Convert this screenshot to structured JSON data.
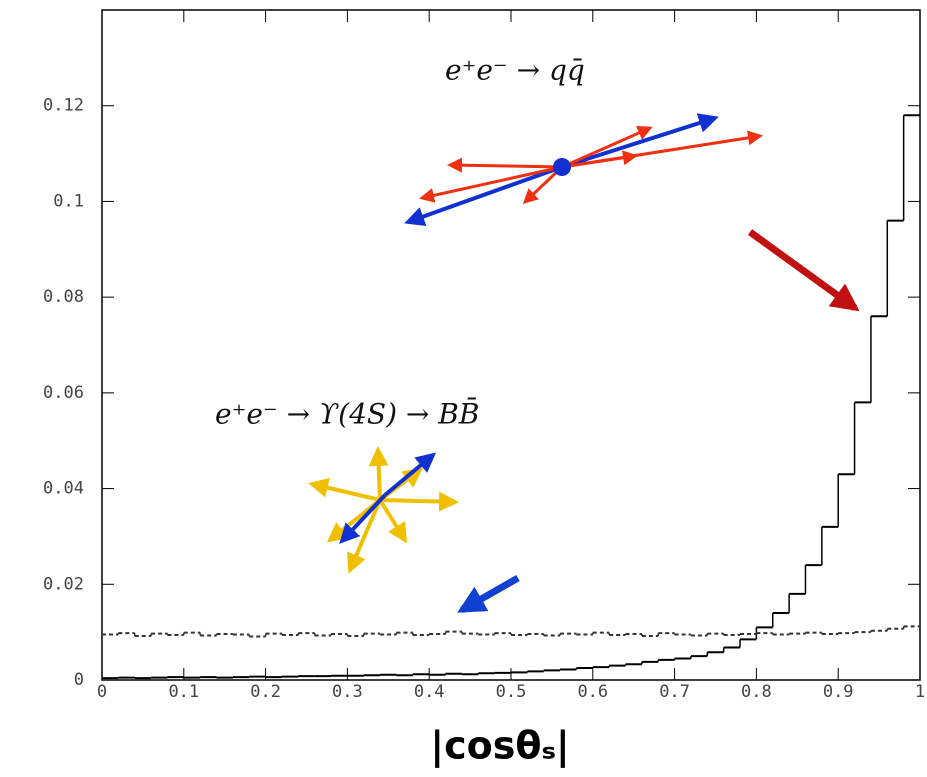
{
  "chart_data": {
    "type": "histogram",
    "x_label": "|cosθₛ|",
    "annotations": [
      "e⁺e⁻ → qq̄",
      "e⁺e⁻ → ϒ(4S) → BB̄"
    ],
    "bins": [
      0,
      0.02,
      0.04,
      0.06,
      0.08,
      0.1,
      0.12,
      0.14,
      0.16,
      0.18,
      0.2,
      0.22,
      0.24,
      0.26,
      0.28,
      0.3,
      0.32,
      0.34,
      0.36,
      0.38,
      0.4,
      0.42,
      0.44,
      0.46,
      0.48,
      0.5,
      0.52,
      0.54,
      0.56,
      0.58,
      0.6,
      0.62,
      0.64,
      0.66,
      0.68,
      0.7,
      0.72,
      0.74,
      0.76,
      0.78,
      0.8,
      0.82,
      0.84,
      0.86,
      0.88,
      0.9,
      0.92,
      0.94,
      0.96,
      0.98,
      1
    ],
    "series": [
      {
        "color": "#000000",
        "dashed": false,
        "values": [
          0.0004,
          0.0005,
          0.0004,
          0.0005,
          0.0006,
          0.0005,
          0.0006,
          0.0005,
          0.0006,
          0.0007,
          0.0006,
          0.0007,
          0.0008,
          0.0008,
          0.0009,
          0.0009,
          0.001,
          0.0011,
          0.001,
          0.0012,
          0.0011,
          0.0013,
          0.0012,
          0.0014,
          0.0015,
          0.0016,
          0.0018,
          0.002,
          0.0022,
          0.0025,
          0.0027,
          0.003,
          0.0033,
          0.0038,
          0.0042,
          0.0045,
          0.005,
          0.0058,
          0.0068,
          0.0085,
          0.011,
          0.014,
          0.018,
          0.024,
          0.032,
          0.043,
          0.058,
          0.076,
          0.096,
          0.118
        ]
      },
      {
        "color": "#333333",
        "dashed": true,
        "values": [
          0.0095,
          0.0098,
          0.0092,
          0.0097,
          0.0094,
          0.0099,
          0.0093,
          0.0096,
          0.0095,
          0.0091,
          0.0097,
          0.0094,
          0.0098,
          0.0093,
          0.0096,
          0.0092,
          0.0097,
          0.0095,
          0.0099,
          0.0094,
          0.0096,
          0.0101,
          0.0097,
          0.0095,
          0.0098,
          0.0094,
          0.0096,
          0.0093,
          0.0097,
          0.0095,
          0.0099,
          0.0094,
          0.0096,
          0.0092,
          0.0098,
          0.0095,
          0.0093,
          0.0097,
          0.0094,
          0.0096,
          0.0098,
          0.0095,
          0.0097,
          0.0099,
          0.0096,
          0.0098,
          0.01,
          0.0103,
          0.0107,
          0.0112
        ]
      }
    ],
    "xlim": [
      0,
      1
    ],
    "ylim": [
      0,
      0.14
    ],
    "xticks": [
      0,
      0.1,
      0.2,
      0.3,
      0.4,
      0.5,
      0.6,
      0.7,
      0.8,
      0.9,
      1
    ],
    "yticks": [
      0,
      0.02,
      0.04,
      0.06,
      0.08,
      0.1,
      0.12
    ]
  }
}
